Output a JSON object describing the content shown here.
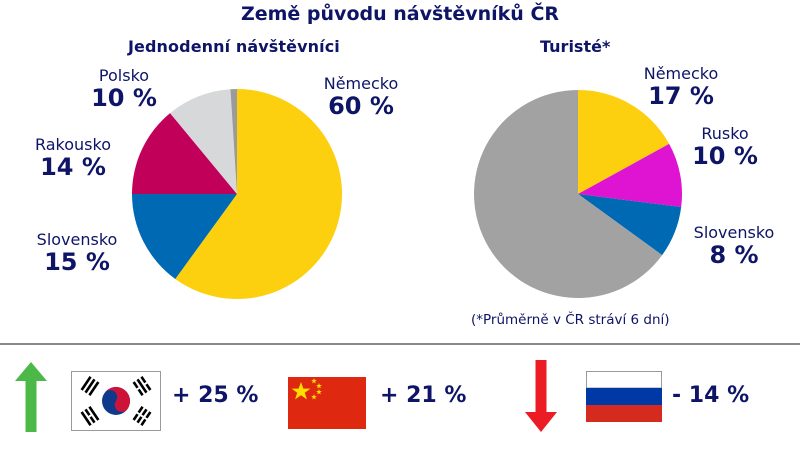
{
  "title": "Země původu návštěvníků ČR",
  "colors": {
    "text": "#0e1466",
    "germany": "#fccf0f",
    "slovakia": "#0069b4",
    "austria": "#c1005a",
    "poland": "#d7d8da",
    "other_small": "#9b9b9b",
    "russia": "#de14d2",
    "other": "#a2a2a2",
    "arrow_up": "#4cb848",
    "arrow_down": "#ec1c24",
    "divider": "#8a8a8a"
  },
  "chart_data": [
    {
      "type": "pie",
      "title": "Jednodenní návštěvníci",
      "start_angle_deg": 0,
      "direction": "clockwise",
      "slices": [
        {
          "label": "Německo",
          "value": 60,
          "display": "60 %",
          "color": "#fccf0f"
        },
        {
          "label": "Slovensko",
          "value": 15,
          "display": "15 %",
          "color": "#0069b4"
        },
        {
          "label": "Rakousko",
          "value": 14,
          "display": "14 %",
          "color": "#c1005a"
        },
        {
          "label": "Polsko",
          "value": 10,
          "display": "10 %",
          "color": "#d7d8da"
        },
        {
          "label": "",
          "value": 1,
          "display": "",
          "color": "#9b9b9b"
        }
      ]
    },
    {
      "type": "pie",
      "title": "Turisté*",
      "start_angle_deg": 0,
      "direction": "clockwise",
      "slices": [
        {
          "label": "Německo",
          "value": 17,
          "display": "17 %",
          "color": "#fccf0f"
        },
        {
          "label": "Rusko",
          "value": 10,
          "display": "10 %",
          "color": "#de14d2"
        },
        {
          "label": "Slovensko",
          "value": 8,
          "display": "8 %",
          "color": "#0069b4"
        },
        {
          "label": "",
          "value": 65,
          "display": "",
          "color": "#a2a2a2"
        }
      ],
      "footnote": "(*Průměrně v ČR stráví 6 dní)"
    }
  ],
  "left_chart": {
    "subtitle": "Jednodenní návštěvníci",
    "labels": {
      "germany": {
        "name": "Německo",
        "pct": "60 %"
      },
      "poland": {
        "name": "Polsko",
        "pct": "10 %"
      },
      "austria": {
        "name": "Rakousko",
        "pct": "14 %"
      },
      "slovakia": {
        "name": "Slovensko",
        "pct": "15 %"
      }
    }
  },
  "right_chart": {
    "subtitle": "Turisté*",
    "labels": {
      "germany": {
        "name": "Německo",
        "pct": "17 %"
      },
      "russia": {
        "name": "Rusko",
        "pct": "10 %"
      },
      "slovakia": {
        "name": "Slovensko",
        "pct": "8 %"
      }
    },
    "footnote": "(*Průměrně v ČR stráví 6 dní)"
  },
  "changes": [
    {
      "country": "Jižní Korea",
      "flag": "south-korea-flag",
      "value": "+ 25 %",
      "trend": "up"
    },
    {
      "country": "Čína",
      "flag": "china-flag",
      "value": "+ 21 %",
      "trend": "up"
    },
    {
      "country": "Rusko",
      "flag": "russia-flag",
      "value": "- 14 %",
      "trend": "down"
    }
  ]
}
